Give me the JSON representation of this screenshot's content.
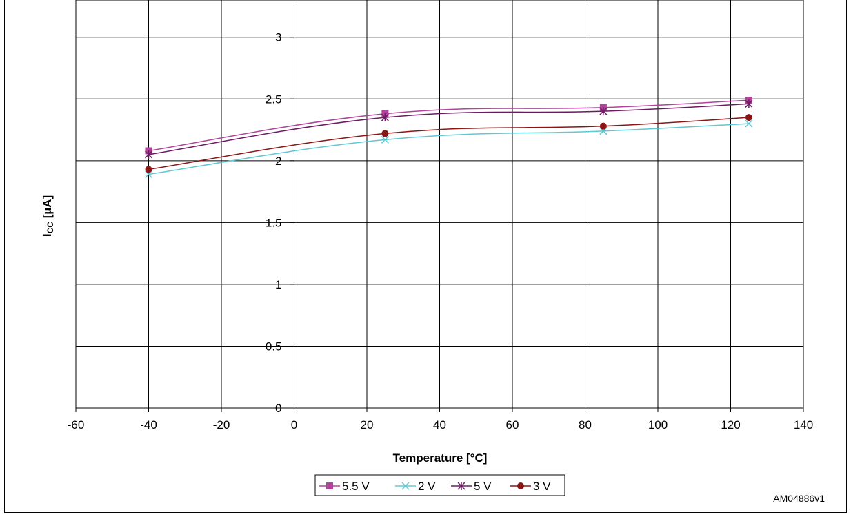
{
  "chart_data": {
    "type": "line",
    "title": "",
    "xlabel": "Temperature [°C]",
    "ylabel_main": "I",
    "ylabel_sub": "CC",
    "ylabel_unit": " [µA]",
    "xlim": [
      -60,
      140
    ],
    "ylim": [
      0,
      3.3
    ],
    "x_ticks": [
      -60,
      -40,
      -20,
      0,
      20,
      40,
      60,
      80,
      100,
      120,
      140
    ],
    "y_ticks": [
      0,
      0.5,
      1,
      1.5,
      2,
      2.5,
      3
    ],
    "grid": true,
    "legend_position": "bottom-center",
    "x": [
      -40,
      25,
      85,
      125
    ],
    "series": [
      {
        "name": "5.5 V",
        "values": [
          2.08,
          2.38,
          2.43,
          2.49
        ],
        "color": "#b0439a",
        "marker": "square"
      },
      {
        "name": "2 V",
        "values": [
          1.89,
          2.17,
          2.24,
          2.3
        ],
        "color": "#5fc8d5",
        "marker": "x"
      },
      {
        "name": "5 V",
        "values": [
          2.05,
          2.35,
          2.4,
          2.46
        ],
        "color": "#6e1a63",
        "marker": "star"
      },
      {
        "name": "3 V",
        "values": [
          1.93,
          2.22,
          2.28,
          2.35
        ],
        "color": "#8b1515",
        "marker": "circle"
      }
    ]
  },
  "doc_id": "AM04886v1"
}
